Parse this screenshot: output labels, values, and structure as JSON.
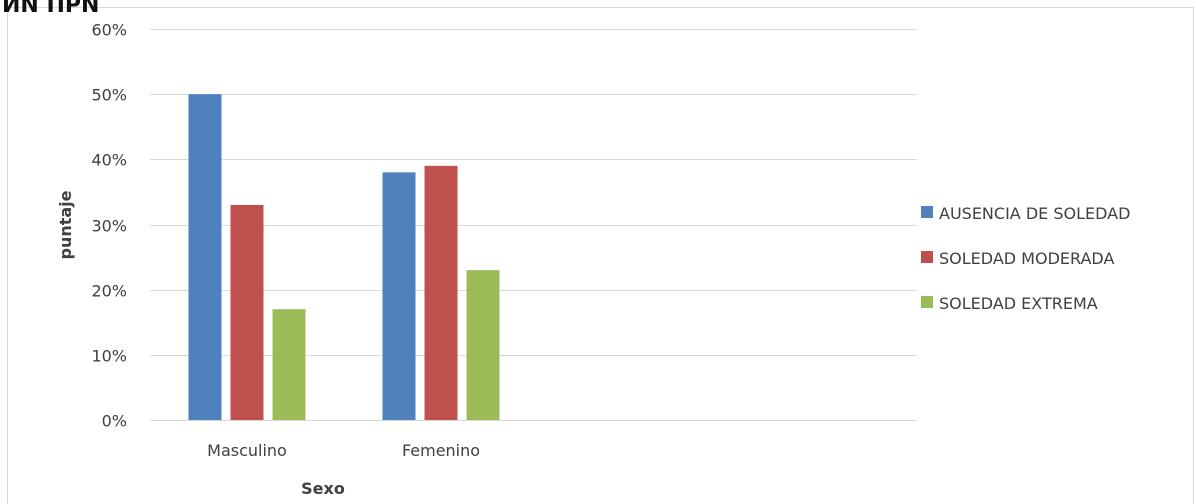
{
  "corner_fragment": "ИN ПРN",
  "chart_data": {
    "type": "bar",
    "categories": [
      "Masculino",
      "Femenino"
    ],
    "series": [
      {
        "name": "AUSENCIA DE SOLEDAD",
        "values": [
          50,
          38
        ],
        "color": "#4F81BD"
      },
      {
        "name": "SOLEDAD MODERADA",
        "values": [
          33,
          39
        ],
        "color": "#C0504D"
      },
      {
        "name": "SOLEDAD EXTREMA",
        "values": [
          17,
          23
        ],
        "color": "#9BBB59"
      }
    ],
    "xlabel": "Sexo",
    "ylabel": "puntaje",
    "ylim": [
      0,
      60
    ],
    "yticks": [
      "0%",
      "10%",
      "20%",
      "30%",
      "40%",
      "50%",
      "60%"
    ],
    "grid": true,
    "legend_position": "right"
  }
}
